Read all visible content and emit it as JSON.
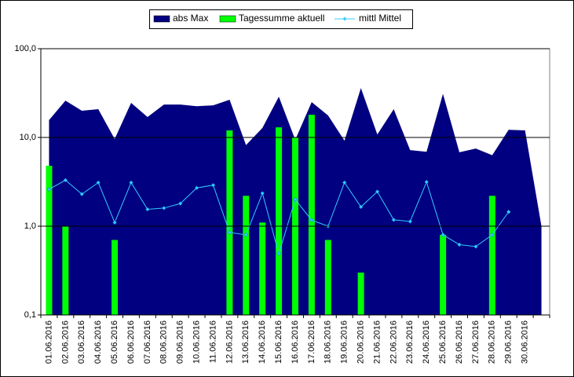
{
  "chart_data": {
    "type": "combo",
    "categories": [
      "01.06.2016",
      "02.06.2016",
      "03.06.2016",
      "04.06.2016",
      "05.06.2016",
      "06.06.2016",
      "07.06.2016",
      "08.06.2016",
      "09.06.2016",
      "10.06.2016",
      "11.06.2016",
      "12.06.2016",
      "13.06.2016",
      "14.06.2016",
      "15.06.2016",
      "16.06.2016",
      "17.06.2016",
      "18.06.2016",
      "19.06.2016",
      "20.06.2016",
      "21.06.2016",
      "22.06.2016",
      "23.06.2016",
      "24.06.2016",
      "25.06.2016",
      "26.06.2016",
      "27.06.2016",
      "28.06.2016",
      "29.06.2016",
      "30.06.2016",
      null
    ],
    "series": [
      {
        "name": "abs Max",
        "kind": "area",
        "color": "#000080",
        "values": [
          15.7,
          26,
          20,
          20.8,
          9.6,
          24.5,
          17,
          23.5,
          23.5,
          22.5,
          23,
          26.6,
          8.2,
          12.8,
          28.8,
          9.4,
          25,
          17.7,
          9.2,
          36,
          10.8,
          20.8,
          7.2,
          6.9,
          31,
          6.8,
          7.5,
          6.3,
          12.2,
          12,
          1.0
        ]
      },
      {
        "name": "Tagessumme aktuell",
        "kind": "bar",
        "color": "#00ff00",
        "values": [
          4.8,
          1.0,
          null,
          null,
          0.7,
          null,
          null,
          null,
          null,
          null,
          null,
          12,
          2.2,
          1.1,
          13,
          10,
          18,
          0.7,
          null,
          0.3,
          null,
          null,
          null,
          null,
          0.8,
          null,
          null,
          2.2,
          null,
          null,
          null
        ]
      },
      {
        "name": "mittl Mittel",
        "kind": "line",
        "color": "#33ccff",
        "values": [
          2.6,
          3.3,
          2.3,
          3.1,
          1.1,
          3.1,
          1.55,
          1.6,
          1.8,
          2.7,
          2.9,
          0.85,
          0.8,
          2.35,
          0.49,
          2.0,
          1.17,
          1.0,
          3.1,
          1.65,
          2.45,
          1.18,
          1.13,
          3.15,
          0.8,
          0.62,
          0.59,
          0.8,
          1.45,
          null,
          null
        ]
      }
    ],
    "ylim": [
      0.1,
      100
    ],
    "yscale": "log",
    "yticks": [
      {
        "value": 0.1,
        "label": "0,1"
      },
      {
        "value": 1,
        "label": "1,0"
      },
      {
        "value": 10,
        "label": "10,0"
      },
      {
        "value": 100,
        "label": "100,0"
      }
    ],
    "grid": true,
    "legend": "top"
  }
}
